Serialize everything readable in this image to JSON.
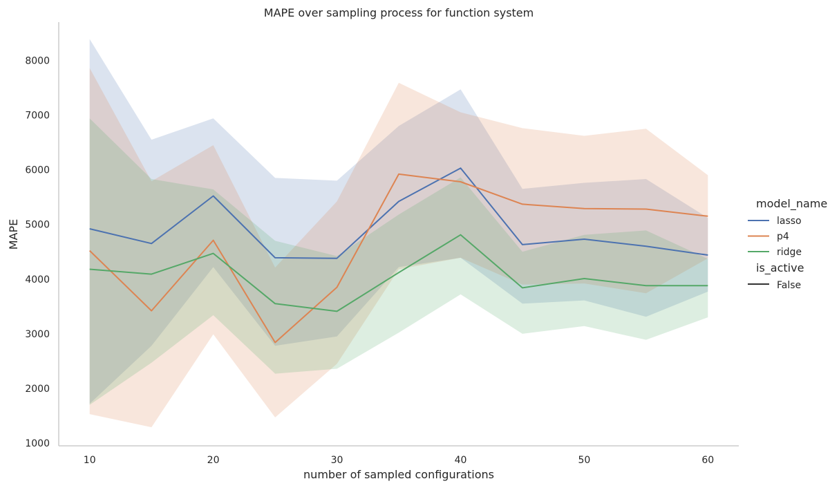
{
  "chart_data": {
    "type": "line",
    "title": "MAPE over sampling process for function system",
    "xlabel": "number of sampled configurations",
    "ylabel": "MAPE",
    "xlim": [
      7.5,
      62.5
    ],
    "ylim": [
      950,
      8700
    ],
    "xticks": [
      10,
      20,
      30,
      40,
      50,
      60
    ],
    "yticks": [
      1000,
      2000,
      3000,
      4000,
      5000,
      6000,
      7000,
      8000
    ],
    "x": [
      10,
      15,
      20,
      25,
      30,
      35,
      40,
      45,
      50,
      55,
      60
    ],
    "grid": false,
    "legend_placement": "center-right",
    "legend": {
      "hue_title": "model_name",
      "style_title": "is_active",
      "style_entries": [
        {
          "label": "False",
          "color": "#333333"
        }
      ]
    },
    "series": [
      {
        "name": "lasso",
        "color": "#4c72b0",
        "values": [
          4920,
          4650,
          5520,
          4390,
          4380,
          5420,
          6030,
          4630,
          4730,
          4600,
          4440
        ],
        "ci_low": [
          1720,
          2780,
          4220,
          2780,
          2950,
          4220,
          4390,
          3550,
          3610,
          3310,
          3770
        ],
        "ci_high": [
          8390,
          6550,
          6940,
          5850,
          5800,
          6800,
          7470,
          5650,
          5760,
          5830,
          5120
        ]
      },
      {
        "name": "p4",
        "color": "#dd8452",
        "values": [
          4520,
          3420,
          4710,
          2840,
          3850,
          5920,
          5780,
          5370,
          5290,
          5280,
          5150
        ],
        "ci_low": [
          1530,
          1290,
          2990,
          1470,
          2450,
          4180,
          4390,
          3900,
          3920,
          3740,
          4380
        ],
        "ci_high": [
          7860,
          5790,
          6450,
          4210,
          5420,
          7590,
          7050,
          6760,
          6620,
          6750,
          5900
        ]
      },
      {
        "name": "ridge",
        "color": "#55a868",
        "values": [
          4180,
          4090,
          4470,
          3550,
          3410,
          4120,
          4810,
          3840,
          4010,
          3880,
          3880
        ],
        "ci_low": [
          1700,
          2470,
          3340,
          2270,
          2360,
          3020,
          3720,
          3000,
          3140,
          2890,
          3300
        ],
        "ci_high": [
          6940,
          5830,
          5640,
          4700,
          4420,
          5180,
          5860,
          4500,
          4810,
          4890,
          4370
        ]
      }
    ]
  }
}
